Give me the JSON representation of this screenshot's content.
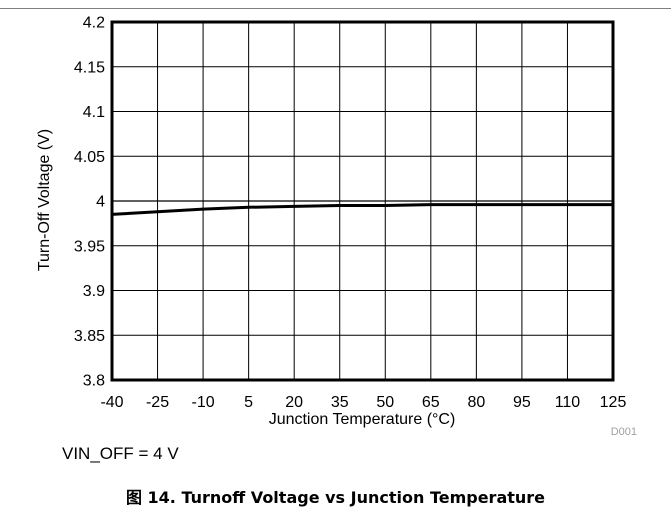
{
  "chart_data": {
    "type": "line",
    "xlabel": "Junction Temperature (°C)",
    "ylabel": "Turn-Off Voltage (V)",
    "xlim": [
      -40,
      125
    ],
    "ylim": [
      3.8,
      4.2
    ],
    "x_ticks": [
      "-40",
      "-25",
      "-10",
      "5",
      "20",
      "35",
      "50",
      "65",
      "80",
      "95",
      "110",
      "125"
    ],
    "y_ticks": [
      "3.8",
      "3.85",
      "3.9",
      "3.95",
      "4",
      "4.05",
      "4.1",
      "4.15",
      "4.2"
    ],
    "grid": true,
    "series": [
      {
        "name": "",
        "color": "#000000",
        "x": [
          -40,
          -25,
          -10,
          5,
          20,
          35,
          50,
          65,
          80,
          95,
          110,
          125
        ],
        "y": [
          3.985,
          3.988,
          3.991,
          3.993,
          3.994,
          3.995,
          3.995,
          3.996,
          3.996,
          3.996,
          3.996,
          3.996
        ]
      }
    ],
    "reference_lines": [
      {
        "axis": "y",
        "value": 4,
        "color": "#000000"
      }
    ],
    "annotation": "D001"
  },
  "note": "VIN_OFF = 4 V",
  "caption": "图 14. Turnoff Voltage vs Junction Temperature"
}
